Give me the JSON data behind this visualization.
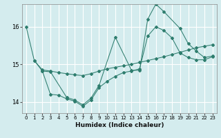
{
  "xlabel": "Humidex (Indice chaleur)",
  "bg_color": "#d4ecee",
  "line_color": "#2e7d6e",
  "grid_color": "#ffffff",
  "xlim": [
    -0.5,
    23.5
  ],
  "ylim": [
    13.7,
    16.6
  ],
  "yticks": [
    14,
    15,
    16
  ],
  "xticks": [
    0,
    1,
    2,
    3,
    4,
    5,
    6,
    7,
    8,
    9,
    10,
    11,
    12,
    13,
    14,
    15,
    16,
    17,
    18,
    19,
    20,
    21,
    22,
    23
  ],
  "line1_x": [
    0,
    1,
    2,
    3,
    4,
    5,
    6,
    7,
    8,
    9,
    10,
    11,
    12,
    13,
    14,
    15,
    16,
    17,
    18,
    19,
    20,
    21,
    22,
    23
  ],
  "line1_y": [
    16.0,
    15.1,
    14.85,
    14.82,
    14.78,
    14.75,
    14.72,
    14.7,
    14.75,
    14.82,
    14.88,
    14.92,
    14.96,
    15.0,
    15.05,
    15.1,
    15.15,
    15.2,
    15.26,
    15.32,
    15.38,
    15.44,
    15.48,
    15.52
  ],
  "line2_x": [
    1,
    2,
    3,
    4,
    5,
    6,
    7,
    8,
    9,
    10,
    11,
    12,
    13,
    14,
    15,
    16,
    17,
    18,
    19,
    20,
    21,
    22,
    23
  ],
  "line2_y": [
    15.1,
    14.82,
    14.2,
    14.18,
    14.08,
    14.02,
    13.88,
    14.05,
    14.38,
    14.55,
    14.68,
    14.78,
    14.82,
    14.88,
    15.75,
    16.0,
    15.9,
    15.7,
    15.3,
    15.18,
    15.12,
    15.12,
    15.2
  ],
  "line3_x": [
    2,
    3,
    5,
    6,
    7,
    8,
    9,
    11,
    13,
    14,
    15,
    16,
    17,
    19,
    20,
    21,
    22,
    23
  ],
  "line3_y": [
    14.82,
    14.8,
    14.12,
    14.05,
    13.92,
    14.1,
    14.44,
    15.72,
    14.84,
    14.84,
    16.2,
    16.6,
    16.4,
    15.95,
    15.55,
    15.35,
    15.18,
    15.22
  ]
}
